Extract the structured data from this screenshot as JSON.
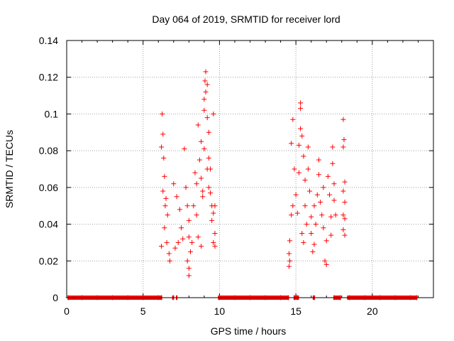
{
  "chart_data": {
    "type": "scatter",
    "title": "Day 064 of 2019, SRMTID for receiver lord",
    "xlabel": "GPS time / hours",
    "ylabel": "SRMTID / TECUs",
    "xlim": [
      0,
      24
    ],
    "ylim": [
      0,
      0.14
    ],
    "x_ticks": [
      0,
      5,
      10,
      15,
      20
    ],
    "x_tick_labels": [
      "0",
      "5",
      "10",
      "15",
      "20"
    ],
    "y_ticks": [
      0,
      0.02,
      0.04,
      0.06,
      0.08,
      0.1,
      0.12,
      0.14
    ],
    "y_tick_labels": [
      "0",
      "0.02",
      "0.04",
      "0.06",
      "0.08",
      "0.1",
      "0.12",
      "0.14"
    ],
    "grid": true,
    "marker": "+",
    "color": "#ff0000",
    "series": [
      {
        "name": "SRMTID",
        "points": [
          [
            6.25,
            0.1
          ],
          [
            6.3,
            0.089
          ],
          [
            6.35,
            0.076
          ],
          [
            6.2,
            0.082
          ],
          [
            6.4,
            0.066
          ],
          [
            6.3,
            0.058
          ],
          [
            6.5,
            0.054
          ],
          [
            6.6,
            0.045
          ],
          [
            6.4,
            0.038
          ],
          [
            6.55,
            0.03
          ],
          [
            6.7,
            0.024
          ],
          [
            6.75,
            0.02
          ],
          [
            6.2,
            0.028
          ],
          [
            6.45,
            0.05
          ],
          [
            7.0,
            0.062
          ],
          [
            7.2,
            0.055
          ],
          [
            7.4,
            0.048
          ],
          [
            7.5,
            0.038
          ],
          [
            7.6,
            0.032
          ],
          [
            7.3,
            0.03
          ],
          [
            7.1,
            0.027
          ],
          [
            7.7,
            0.081
          ],
          [
            7.8,
            0.06
          ],
          [
            7.9,
            0.05
          ],
          [
            8.0,
            0.042
          ],
          [
            8.0,
            0.033
          ],
          [
            8.1,
            0.025
          ],
          [
            7.9,
            0.02
          ],
          [
            8.0,
            0.016
          ],
          [
            8.0,
            0.012
          ],
          [
            8.2,
            0.03
          ],
          [
            8.3,
            0.05
          ],
          [
            8.4,
            0.068
          ],
          [
            8.5,
            0.062
          ],
          [
            8.6,
            0.094
          ],
          [
            8.7,
            0.075
          ],
          [
            8.8,
            0.085
          ],
          [
            8.8,
            0.065
          ],
          [
            8.9,
            0.055
          ],
          [
            9.0,
            0.102
          ],
          [
            9.0,
            0.108
          ],
          [
            9.1,
            0.112
          ],
          [
            9.05,
            0.118
          ],
          [
            9.1,
            0.123
          ],
          [
            9.2,
            0.116
          ],
          [
            9.2,
            0.098
          ],
          [
            9.3,
            0.09
          ],
          [
            9.3,
            0.076
          ],
          [
            9.4,
            0.07
          ],
          [
            9.4,
            0.057
          ],
          [
            9.5,
            0.05
          ],
          [
            9.5,
            0.042
          ],
          [
            9.6,
            0.1
          ],
          [
            9.6,
            0.046
          ],
          [
            9.7,
            0.05
          ],
          [
            9.7,
            0.035
          ],
          [
            9.6,
            0.03
          ],
          [
            9.7,
            0.028
          ],
          [
            8.8,
            0.028
          ],
          [
            8.6,
            0.033
          ],
          [
            8.5,
            0.045
          ],
          [
            9.2,
            0.07
          ],
          [
            9.3,
            0.06
          ],
          [
            9.0,
            0.081
          ],
          [
            8.9,
            0.058
          ],
          [
            14.55,
            0.024
          ],
          [
            14.6,
            0.02
          ],
          [
            14.55,
            0.017
          ],
          [
            14.6,
            0.031
          ],
          [
            14.7,
            0.045
          ],
          [
            14.8,
            0.05
          ],
          [
            14.9,
            0.07
          ],
          [
            14.7,
            0.084
          ],
          [
            14.8,
            0.097
          ],
          [
            15.0,
            0.056
          ],
          [
            15.1,
            0.046
          ],
          [
            15.2,
            0.068
          ],
          [
            15.2,
            0.083
          ],
          [
            15.3,
            0.092
          ],
          [
            15.3,
            0.103
          ],
          [
            15.3,
            0.106
          ],
          [
            15.4,
            0.088
          ],
          [
            15.5,
            0.077
          ],
          [
            15.6,
            0.064
          ],
          [
            15.6,
            0.05
          ],
          [
            15.7,
            0.04
          ],
          [
            15.8,
            0.07
          ],
          [
            15.8,
            0.082
          ],
          [
            15.9,
            0.058
          ],
          [
            16.0,
            0.044
          ],
          [
            16.0,
            0.035
          ],
          [
            16.1,
            0.025
          ],
          [
            16.2,
            0.029
          ],
          [
            16.3,
            0.04
          ],
          [
            16.4,
            0.056
          ],
          [
            16.5,
            0.067
          ],
          [
            16.5,
            0.075
          ],
          [
            16.6,
            0.052
          ],
          [
            16.7,
            0.045
          ],
          [
            16.8,
            0.038
          ],
          [
            16.9,
            0.02
          ],
          [
            17.0,
            0.018
          ],
          [
            17.0,
            0.031
          ],
          [
            17.1,
            0.066
          ],
          [
            17.2,
            0.056
          ],
          [
            17.3,
            0.044
          ],
          [
            17.3,
            0.034
          ],
          [
            17.4,
            0.082
          ],
          [
            17.4,
            0.073
          ],
          [
            17.5,
            0.062
          ],
          [
            17.5,
            0.053
          ],
          [
            17.6,
            0.045
          ],
          [
            15.4,
            0.035
          ],
          [
            15.5,
            0.03
          ],
          [
            16.2,
            0.05
          ],
          [
            16.8,
            0.06
          ],
          [
            18.1,
            0.097
          ],
          [
            18.15,
            0.086
          ],
          [
            18.1,
            0.082
          ],
          [
            18.2,
            0.063
          ],
          [
            18.1,
            0.058
          ],
          [
            18.2,
            0.052
          ],
          [
            18.1,
            0.045
          ],
          [
            18.2,
            0.043
          ],
          [
            18.1,
            0.037
          ],
          [
            18.2,
            0.034
          ],
          [
            0.1,
            0
          ],
          [
            1.0,
            0
          ],
          [
            2.0,
            0
          ],
          [
            3.0,
            0
          ],
          [
            4.0,
            0
          ],
          [
            5.0,
            0
          ],
          [
            6.0,
            0
          ],
          [
            6.2,
            0
          ],
          [
            7.0,
            0
          ],
          [
            7.2,
            0
          ],
          [
            10.0,
            0
          ],
          [
            11.0,
            0
          ],
          [
            12.0,
            0
          ],
          [
            13.0,
            0
          ],
          [
            14.0,
            0
          ],
          [
            14.5,
            0
          ],
          [
            14.9,
            0
          ],
          [
            15.1,
            0
          ],
          [
            16.2,
            0
          ],
          [
            17.5,
            0
          ],
          [
            17.9,
            0
          ],
          [
            18.5,
            0
          ],
          [
            19.5,
            0
          ],
          [
            20.5,
            0
          ],
          [
            21.5,
            0
          ],
          [
            22.5,
            0
          ],
          [
            22.9,
            0
          ]
        ],
        "baseline_segments": [
          [
            0.05,
            6.25
          ],
          [
            6.9,
            7.0
          ],
          [
            7.15,
            7.25
          ],
          [
            9.9,
            14.55
          ],
          [
            14.85,
            15.2
          ],
          [
            16.1,
            16.25
          ],
          [
            17.45,
            17.95
          ],
          [
            18.35,
            22.95
          ]
        ]
      }
    ]
  }
}
